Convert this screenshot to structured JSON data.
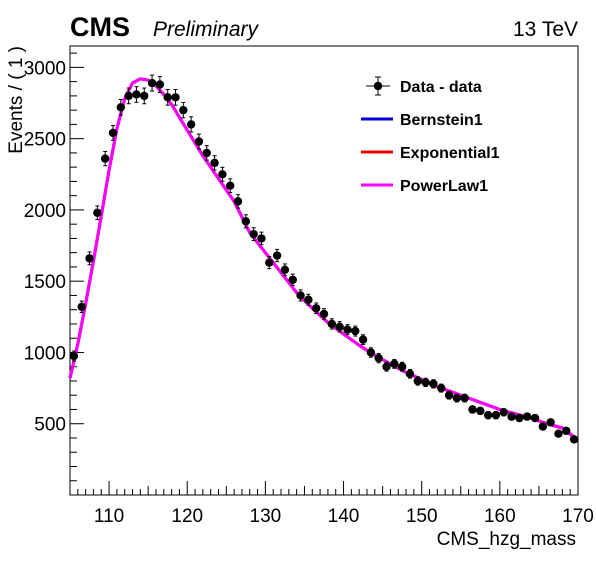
{
  "header": {
    "experiment": "CMS",
    "status": "Preliminary",
    "energy": "13 TeV"
  },
  "chart_data": {
    "type": "line",
    "xlabel": "CMS_hzg_mass",
    "ylabel": "Events / ( 1 )",
    "xlim": [
      105,
      170
    ],
    "ylim": [
      0,
      3150
    ],
    "x_ticks": [
      110,
      120,
      130,
      140,
      150,
      160,
      170
    ],
    "y_ticks": [
      500,
      1000,
      1500,
      2000,
      2500,
      3000
    ],
    "grid": false,
    "legend_position": "top-right",
    "legend": [
      {
        "label": "Data - data",
        "kind": "marker",
        "color": "#000000"
      },
      {
        "label": "Bernstein1",
        "kind": "line",
        "color": "#0000dd"
      },
      {
        "label": "Exponential1",
        "kind": "line",
        "color": "#ee0000"
      },
      {
        "label": "PowerLaw1",
        "kind": "line",
        "color": "#ff00ff"
      }
    ],
    "data": {
      "name": "Data - data",
      "x": [
        105.5,
        106.5,
        107.5,
        108.5,
        109.5,
        110.5,
        111.5,
        112.5,
        113.5,
        114.5,
        115.5,
        116.5,
        117.5,
        118.5,
        119.5,
        120.5,
        121.5,
        122.5,
        123.5,
        124.5,
        125.5,
        126.5,
        127.5,
        128.5,
        129.5,
        130.5,
        131.5,
        132.5,
        133.5,
        134.5,
        135.5,
        136.5,
        137.5,
        138.5,
        139.5,
        140.5,
        141.5,
        142.5,
        143.5,
        144.5,
        145.5,
        146.5,
        147.5,
        148.5,
        149.5,
        150.5,
        151.5,
        152.5,
        153.5,
        154.5,
        155.5,
        156.5,
        157.5,
        158.5,
        159.5,
        160.5,
        161.5,
        162.5,
        163.5,
        164.5,
        165.5,
        166.5,
        167.5,
        168.5,
        169.5
      ],
      "y": [
        975,
        1320,
        1660,
        1980,
        2360,
        2540,
        2720,
        2800,
        2810,
        2800,
        2890,
        2880,
        2790,
        2790,
        2700,
        2600,
        2480,
        2400,
        2330,
        2250,
        2170,
        2060,
        1920,
        1830,
        1800,
        1630,
        1680,
        1580,
        1510,
        1400,
        1370,
        1310,
        1270,
        1200,
        1180,
        1160,
        1150,
        1090,
        1000,
        960,
        900,
        920,
        900,
        850,
        800,
        790,
        780,
        750,
        700,
        680,
        680,
        600,
        590,
        560,
        560,
        580,
        550,
        540,
        550,
        540,
        480,
        510,
        430,
        450,
        390
      ],
      "err": [
        35,
        40,
        45,
        48,
        50,
        52,
        55,
        55,
        55,
        55,
        56,
        56,
        55,
        55,
        54,
        53,
        52,
        51,
        50,
        49,
        48,
        47,
        46,
        45,
        44,
        42,
        43,
        41,
        40,
        39,
        38,
        37,
        37,
        36,
        36,
        35,
        35,
        34,
        33,
        32,
        31,
        31,
        31,
        30,
        29,
        29,
        29,
        28,
        27,
        27,
        27,
        25,
        25,
        25,
        25,
        25,
        24,
        24,
        24,
        24,
        23,
        23,
        22,
        22,
        21
      ],
      "xerr": 0.5
    },
    "series": [
      {
        "name": "Bernstein1",
        "color": "#0000dd",
        "x": [
          105,
          106,
          107,
          108,
          109,
          110,
          111,
          112,
          113,
          114,
          115,
          116,
          117,
          118,
          119,
          120,
          121,
          122,
          124,
          126,
          128,
          130,
          132,
          134,
          136,
          138,
          140,
          142,
          144,
          146,
          148,
          150,
          152,
          154,
          156,
          158,
          160,
          162,
          164,
          166,
          168,
          170
        ],
        "y": [
          820,
          1060,
          1340,
          1640,
          1960,
          2280,
          2570,
          2780,
          2890,
          2920,
          2910,
          2870,
          2810,
          2740,
          2650,
          2560,
          2470,
          2380,
          2220,
          2060,
          1840,
          1700,
          1560,
          1420,
          1310,
          1210,
          1130,
          1050,
          980,
          920,
          860,
          810,
          760,
          720,
          680,
          640,
          600,
          570,
          540,
          500,
          470,
          380
        ]
      },
      {
        "name": "Exponential1",
        "color": "#ee0000",
        "x": [
          105,
          106,
          107,
          108,
          109,
          110,
          111,
          112,
          113,
          114,
          115,
          116,
          117,
          118,
          119,
          120,
          121,
          122,
          124,
          126,
          128,
          130,
          132,
          134,
          136,
          138,
          140,
          142,
          144,
          146,
          148,
          150,
          152,
          154,
          156,
          158,
          160,
          162,
          164,
          166,
          168,
          170
        ],
        "y": [
          820,
          1060,
          1340,
          1640,
          1960,
          2280,
          2570,
          2780,
          2890,
          2920,
          2910,
          2870,
          2810,
          2740,
          2650,
          2560,
          2470,
          2380,
          2220,
          2060,
          1840,
          1700,
          1560,
          1420,
          1310,
          1210,
          1130,
          1050,
          980,
          920,
          860,
          810,
          760,
          720,
          680,
          640,
          600,
          570,
          540,
          500,
          470,
          385
        ]
      },
      {
        "name": "PowerLaw1",
        "color": "#ff00ff",
        "x": [
          105,
          106,
          107,
          108,
          109,
          110,
          111,
          112,
          113,
          114,
          115,
          116,
          117,
          118,
          119,
          120,
          121,
          122,
          124,
          126,
          128,
          130,
          132,
          134,
          136,
          138,
          140,
          142,
          144,
          146,
          148,
          150,
          152,
          154,
          156,
          158,
          160,
          162,
          164,
          166,
          168,
          170
        ],
        "y": [
          820,
          1060,
          1340,
          1640,
          1960,
          2280,
          2570,
          2780,
          2890,
          2920,
          2910,
          2870,
          2810,
          2740,
          2650,
          2560,
          2470,
          2380,
          2220,
          2060,
          1840,
          1700,
          1560,
          1420,
          1310,
          1210,
          1130,
          1050,
          980,
          920,
          860,
          810,
          760,
          720,
          680,
          640,
          600,
          570,
          540,
          500,
          470,
          390
        ]
      }
    ]
  }
}
